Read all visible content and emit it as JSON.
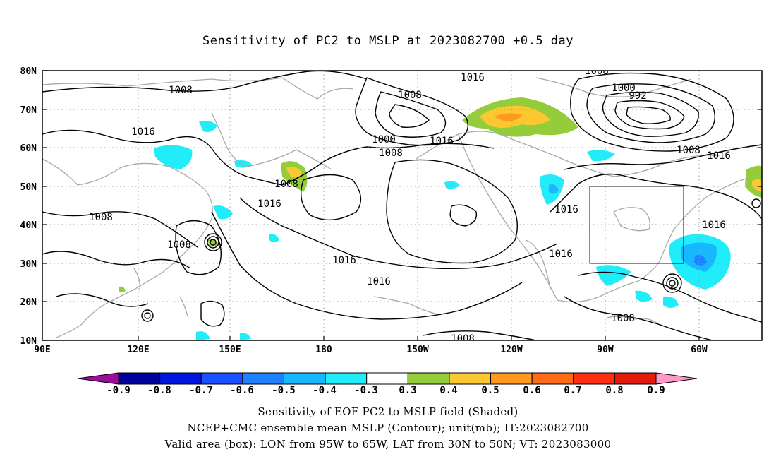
{
  "title": "Sensitivity of PC2 to MSLP at 2023082700 +0.5 day",
  "lat_labels": [
    "80N",
    "70N",
    "60N",
    "50N",
    "40N",
    "30N",
    "20N",
    "10N"
  ],
  "lon_labels": [
    "90E",
    "120E",
    "150E",
    "180",
    "150W",
    "120W",
    "90W",
    "60W"
  ],
  "contour_labels": [
    "1008",
    "1016",
    "1008",
    "1016",
    "1008",
    "1008",
    "1016",
    "1008",
    "1000",
    "1008",
    "1016",
    "1016",
    "1016",
    "1008",
    "1000",
    "992",
    "1008",
    "1016",
    "1016",
    "1016",
    "1016",
    "1008",
    "1008"
  ],
  "colorbar": {
    "labels": [
      "-0.9",
      "-0.8",
      "-0.7",
      "-0.6",
      "-0.5",
      "-0.4",
      "-0.3",
      "0.3",
      "0.4",
      "0.5",
      "0.6",
      "0.7",
      "0.8",
      "0.9"
    ],
    "colors": [
      "#9a0f9a",
      "#00009c",
      "#0016e0",
      "#1a50ff",
      "#1e82ff",
      "#17b8ff",
      "#20ecfa",
      "#ffffff",
      "#94cc3c",
      "#fbc832",
      "#ff9a1e",
      "#ff6a14",
      "#ff3010",
      "#e41a0a",
      "#ff9ac8"
    ]
  },
  "footer": {
    "line1": "Sensitivity of EOF PC2 to MSLP field (Shaded)",
    "line2": "NCEP+CMC ensemble mean MSLP (Contour); unit(mb); IT:2023082700",
    "line3": "Valid area (box): LON from 95W to 65W, LAT from 30N to 50N; VT: 2023083000"
  }
}
